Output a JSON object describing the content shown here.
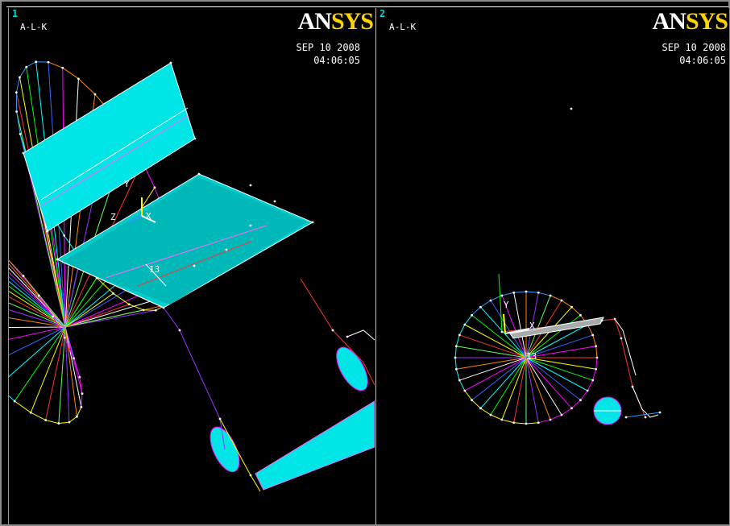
{
  "viewports": [
    {
      "number": "1",
      "title": "A-L-K",
      "logo_main": "AN",
      "logo_accent": "SYS",
      "date": "SEP 10 2008",
      "time": "04:06:05",
      "axis": {
        "x": "X",
        "y": "Y",
        "z": "Z"
      },
      "marker_label": "13"
    },
    {
      "number": "2",
      "title": "A-L-K",
      "logo_main": "AN",
      "logo_accent": "SYS",
      "date": "SEP 10 2008",
      "time": "04:06:05",
      "axis": {
        "x": "X",
        "y": "Y",
        "z": ""
      },
      "marker_label": "13"
    }
  ],
  "colors": {
    "background": "#000000",
    "surface": "#00e5e5",
    "logo_accent": "#ffd200",
    "viewport_number": "#00d8d8"
  },
  "spoke_colors": [
    "#ff3333",
    "#ffff00",
    "#00ff00",
    "#00ffff",
    "#3366ff",
    "#ff00ff",
    "#ffffff",
    "#ff8800",
    "#9933ff",
    "#66ff66"
  ]
}
